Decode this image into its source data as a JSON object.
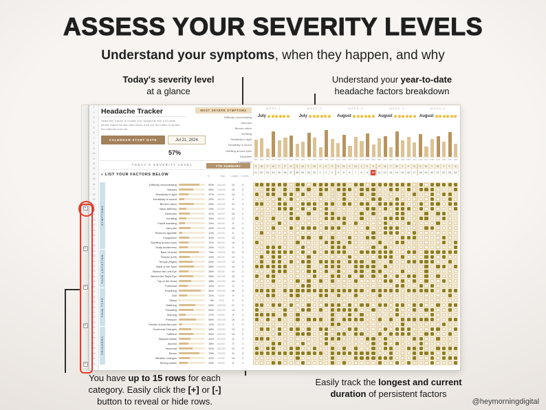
{
  "page": {
    "title": "ASSESS YOUR SEVERITY LEVELS",
    "subtitle": [
      {
        "t": "Understand your symptoms",
        "b": true
      },
      {
        "t": ", when they happen, and why",
        "b": false
      }
    ],
    "credit": "@heymorningdigital"
  },
  "annotations": {
    "top_left": {
      "lines": [
        [
          {
            "t": "Today's severity level",
            "b": true
          }
        ],
        [
          {
            "t": "at a glance",
            "b": false
          }
        ]
      ]
    },
    "top_right": {
      "lines": [
        [
          {
            "t": "Understand your ",
            "b": false
          },
          {
            "t": "year-to-date",
            "b": true
          }
        ],
        [
          {
            "t": "headache factors breakdown",
            "b": false
          }
        ]
      ]
    },
    "bottom_left": {
      "lines": [
        [
          {
            "t": "You have ",
            "b": false
          },
          {
            "t": "up to 15 rows",
            "b": true
          },
          {
            "t": " for each",
            "b": false
          }
        ],
        [
          {
            "t": "category. Easily click the ",
            "b": false
          },
          {
            "t": "[+]",
            "b": true
          },
          {
            "t": " or ",
            "b": false
          },
          {
            "t": "[-]",
            "b": true
          }
        ],
        [
          {
            "t": "button to reveal or hide rows.",
            "b": false
          }
        ]
      ]
    },
    "bottom_right": {
      "lines": [
        [
          {
            "t": "Easily track the ",
            "b": false
          },
          {
            "t": "longest and current",
            "b": true
          }
        ],
        [
          {
            "t": "duration",
            "b": true
          },
          {
            "t": " of persistent factors",
            "b": false
          }
        ]
      ]
    }
  },
  "sheet": {
    "title": "Headache Tracker",
    "blurb": "Utilize this Tracker to monitor your symptoms over a 52-week period. Adjust the start date below, then use the button to update the calendar once set.",
    "start_date_button": "CALENDAR START DATE",
    "start_date": "Jul 21, 2024",
    "severity_value": "57%",
    "severity_label": "TODAY'S SEVERITY LEVEL",
    "factors_label": "LIST YOUR FACTORS BELOW",
    "list_icon": "≡",
    "most_severe": {
      "title": "MOST SEVERE SYMPTOMS",
      "items": [
        "Difficulty concentrating",
        "Jaw pain",
        "Blurred vision",
        "Vomiting",
        "Sensitivity to light",
        "Sensitivity to sound",
        "Swelling around eyes",
        "Dizziness",
        "Congestion"
      ]
    },
    "ytd_label": "YTD SUMMARY",
    "stat_headers": [
      "%",
      "Days",
      "Longest",
      "Current"
    ],
    "weeks": [
      "WEEK 1",
      "WEEK 2",
      "WEEK 3",
      "WEEK 4",
      "WEEK 5"
    ],
    "months": [
      "July",
      "July",
      "August",
      "August",
      "August"
    ],
    "day_letters": [
      "S",
      "M",
      "T",
      "W",
      "T",
      "F",
      "S"
    ],
    "day_numbers": [
      "21",
      "22",
      "23",
      "24",
      "25",
      "26",
      "27",
      "28",
      "29",
      "30",
      "31",
      "1",
      "2",
      "3",
      "4",
      "5",
      "6",
      "7",
      "8",
      "9",
      "10",
      "11",
      "12",
      "13",
      "14",
      "15",
      "16",
      "17",
      "18",
      "19",
      "20",
      "21",
      "22",
      "23",
      "24"
    ],
    "today_index": 20,
    "week_bar_values": [
      50,
      54,
      25,
      75,
      48,
      57,
      62,
      38,
      44,
      71,
      57,
      29,
      78,
      52,
      41,
      64,
      33,
      58,
      47,
      69,
      36,
      55,
      61,
      28,
      74,
      49,
      58,
      42,
      67,
      31,
      53,
      60,
      45,
      72,
      39
    ],
    "group_buttons": [
      "+",
      "+",
      "+",
      "+",
      "+"
    ],
    "groups": [
      {
        "label": "SYMPTOMS",
        "rows": [
          {
            "name": "Difficulty concentrating",
            "pct": 80,
            "frac": "184/230",
            "longest": 24,
            "current": 3
          },
          {
            "name": "Nausea",
            "pct": 56,
            "frac": "129/230",
            "longest": 18,
            "current": 2
          },
          {
            "name": "Sensitivity to light",
            "pct": 37,
            "frac": "85/230",
            "longest": 14,
            "current": 1
          },
          {
            "name": "Sensitivity to sound",
            "pct": 20,
            "frac": "46/230",
            "longest": 9,
            "current": 1
          },
          {
            "name": "Blurred vision",
            "pct": 59,
            "frac": "136/230",
            "longest": 21,
            "current": 2
          },
          {
            "name": "Neck stiffness",
            "pct": 29,
            "frac": "67/230",
            "longest": 11,
            "current": 1
          },
          {
            "name": "Dizziness",
            "pct": 41,
            "frac": "94/230",
            "longest": 16,
            "current": 2
          },
          {
            "name": "Vomiting",
            "pct": 30,
            "frac": "69/230",
            "longest": 12,
            "current": 1
          },
          {
            "name": "Facial sweating",
            "pct": 24,
            "frac": "55/230",
            "longest": 8,
            "current": 1
          },
          {
            "name": "Jaw pain",
            "pct": 46,
            "frac": "106/230",
            "longest": 15,
            "current": 2
          },
          {
            "name": "Reduced appetite",
            "pct": 14,
            "frac": "32/230",
            "longest": 6,
            "current": 1
          },
          {
            "name": "Congestion",
            "pct": 40,
            "frac": "92/230",
            "longest": 13,
            "current": 1
          },
          {
            "name": "Swelling around eyes",
            "pct": 37,
            "frac": "85/230",
            "longest": 10,
            "current": 2
          },
          {
            "name": "Scalp tenderness",
            "pct": 33,
            "frac": "76/230",
            "longest": 9,
            "current": 1
          }
        ]
      },
      {
        "label": "PAIN LOCATION",
        "rows": [
          {
            "name": "Back of head",
            "pct": 76,
            "frac": "175/230",
            "longest": 22,
            "current": 3
          },
          {
            "name": "Temple (Left)",
            "pct": 43,
            "frac": "99/230",
            "longest": 12,
            "current": 1
          },
          {
            "name": "Temple (Right)",
            "pct": 52,
            "frac": "120/230",
            "longest": 14,
            "current": 2
          },
          {
            "name": "Back of the Skull",
            "pct": 58,
            "frac": "133/230",
            "longest": 16,
            "current": 2
          },
          {
            "name": "Behind the Left Eye",
            "pct": 36,
            "frac": "83/230",
            "longest": 10,
            "current": 1
          },
          {
            "name": "Behind the Right Eye",
            "pct": 56,
            "frac": "129/230",
            "longest": 15,
            "current": 2
          },
          {
            "name": "Top of the Head",
            "pct": 48,
            "frac": "110/230",
            "longest": 13,
            "current": 1
          },
          {
            "name": "Forehead",
            "pct": 34,
            "frac": "78/230",
            "longest": 9,
            "current": 1
          }
        ]
      },
      {
        "label": "PAIN TYPE",
        "rows": [
          {
            "name": "Throbbing",
            "pct": 84,
            "frac": "193/230",
            "longest": 26,
            "current": 4
          },
          {
            "name": "Dull",
            "pct": 31,
            "frac": "71/230",
            "longest": 9,
            "current": 1
          },
          {
            "name": "Sharp",
            "pct": 3,
            "frac": "7/230",
            "longest": 2,
            "current": 0
          },
          {
            "name": "Stabbing",
            "pct": 62,
            "frac": "143/230",
            "longest": 17,
            "current": 2
          },
          {
            "name": "Pulsating",
            "pct": 54,
            "frac": "124/230",
            "longest": 14,
            "current": 2
          },
          {
            "name": "Burning",
            "pct": 27,
            "frac": "62/230",
            "longest": 8,
            "current": 1
          },
          {
            "name": "Pressure",
            "pct": 66,
            "frac": "152/230",
            "longest": 19,
            "current": 3
          },
          {
            "name": "Electric shock-like pain",
            "pct": 12,
            "frac": "28/230",
            "longest": 4,
            "current": 0
          }
        ]
      },
      {
        "label": "TRIGGERS",
        "rows": [
          {
            "name": "Hormonal Changes",
            "pct": 48,
            "frac": "110/230",
            "longest": 13,
            "current": 2
          },
          {
            "name": "Caffeine",
            "pct": 56,
            "frac": "129/230",
            "longest": 15,
            "current": 2
          },
          {
            "name": "Skipped Meals",
            "pct": 44,
            "frac": "101/230",
            "longest": 11,
            "current": 1
          },
          {
            "name": "Alcohol",
            "pct": 36,
            "frac": "83/230",
            "longest": 9,
            "current": 1
          },
          {
            "name": "Insomnia",
            "pct": 52,
            "frac": "120/230",
            "longest": 14,
            "current": 2
          },
          {
            "name": "Stress",
            "pct": 78,
            "frac": "179/230",
            "longest": 21,
            "current": 3
          },
          {
            "name": "Weather changes",
            "pct": 42,
            "frac": "97/230",
            "longest": 10,
            "current": 1
          },
          {
            "name": "Strong smells",
            "pct": 33,
            "frac": "76/230",
            "longest": 8,
            "current": 1
          }
        ]
      }
    ],
    "colors": {
      "accent_brown": "#a2805a",
      "tan": "#d8bc8e",
      "beige": "#ecdcbd",
      "checked": "#8d7e25",
      "blue_label": "#cfe0ea",
      "today_red": "#d9453c",
      "annotation_red": "#e23b2e"
    }
  }
}
